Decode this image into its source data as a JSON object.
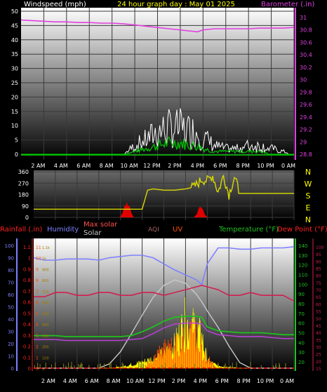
{
  "header": {
    "windspeed_label": "Windspeed (mph)",
    "title": "24 hour graph day : May 01 2025",
    "barometer_label": "Barometer (.in)"
  },
  "x_tick_labels": [
    "2 AM",
    "4 AM",
    "6 AM",
    "8 AM",
    "10 AM",
    "12 PM",
    "2 PM",
    "4 PM",
    "6 PM",
    "8 PM",
    "10 PM",
    "0 AM"
  ],
  "wind_panel": {
    "windspeed_ticks": [
      "0",
      "5",
      "10",
      "15",
      "20",
      "25",
      "30",
      "35",
      "40",
      "45",
      "50"
    ],
    "barometer_ticks": [
      "28.8",
      "29",
      "29.2",
      "29.4",
      "29.6",
      "29.8",
      "30",
      "30.2",
      "30.4",
      "30.6",
      "30.8",
      "31"
    ]
  },
  "dir_panel": {
    "deg_ticks": [
      "0",
      "90",
      "180",
      "270",
      "360"
    ],
    "compass": [
      "N",
      "W",
      "S",
      "E",
      "N"
    ]
  },
  "lower_header": {
    "rainfall": "Rainfall (.in)",
    "humidity": "Humidity",
    "max_solar": "Max solar",
    "solar": "Solar",
    "aqi": "AQI",
    "uv": "UV",
    "temperature": "Temperature (°F)",
    "dewpoint": "Dew Point (°F)"
  },
  "lower_panel": {
    "rain_ticks": [
      "0",
      "0.1",
      "0.2",
      "0.3",
      "0.4",
      "0.5",
      "0.6",
      "0.7",
      "0.8",
      "0.9",
      "1",
      "1.1"
    ],
    "humidity_ticks": [
      "0",
      "10",
      "20",
      "30",
      "40",
      "50",
      "60",
      "70",
      "80",
      "90",
      "100"
    ],
    "temp_ticks": [
      "20",
      "30",
      "40",
      "50",
      "60",
      "70",
      "80",
      "90",
      "100",
      "110",
      "120",
      "130",
      "140"
    ],
    "uv_ticks": [
      "0",
      "1",
      "2",
      "3",
      "4",
      "5",
      "6",
      "7",
      "8",
      "9",
      "10",
      "11"
    ],
    "solar_ticks": [
      "0",
      "100",
      "200",
      "300",
      "400",
      "500",
      "600",
      "700",
      "800",
      "900",
      "1k",
      "1.1k"
    ],
    "dewpoint_ticks": [
      "15",
      "20",
      "25",
      "30",
      "35",
      "40",
      "45",
      "50",
      "55",
      "60",
      "65",
      "70",
      "75",
      "80",
      "85",
      "90",
      "95",
      "100"
    ]
  },
  "colors": {
    "windspeed": "#ffffff",
    "wind_gust": "#00c800",
    "barometer": "#e040e0",
    "direction": "#d8d800",
    "solar": "#ffff00",
    "max_solar": "#c8c8c8",
    "humidity": "#8080ff",
    "temperature": "#20c020",
    "dewpoint": "#d02050",
    "uv": "#ff5000",
    "rain": "#e00000"
  },
  "chart_data": [
    {
      "type": "line",
      "title": "24 hour graph day : May 01 2025",
      "xlabel": "",
      "ylabel": "Windspeed (mph)",
      "ylim": [
        0,
        50
      ],
      "y2label": "Barometer (.in)",
      "y2lim": [
        28.8,
        31
      ],
      "x_hours": [
        0,
        1,
        2,
        3,
        4,
        5,
        6,
        7,
        8,
        9,
        10,
        11,
        12,
        13,
        14,
        15,
        15.5,
        16,
        17,
        18,
        19,
        20,
        21,
        22,
        23,
        24
      ],
      "series": [
        {
          "name": "Barometer (.in)",
          "axis": "y2",
          "values": [
            30.96,
            30.95,
            30.94,
            30.93,
            30.93,
            30.92,
            30.92,
            30.91,
            30.91,
            30.9,
            30.88,
            30.86,
            30.84,
            30.82,
            30.8,
            30.78,
            30.77,
            30.8,
            30.82,
            30.82,
            30.82,
            30.82,
            30.83,
            30.83,
            30.83,
            30.84
          ]
        },
        {
          "name": "Windspeed (mph)",
          "axis": "y",
          "values": [
            0,
            0,
            0,
            0,
            0,
            0,
            0,
            0,
            0,
            0,
            3,
            5,
            8,
            9,
            9,
            8,
            8,
            6,
            3,
            2,
            2,
            3,
            3,
            2,
            1,
            0
          ]
        },
        {
          "name": "Wind gust (mph)",
          "axis": "y",
          "values": [
            0,
            0,
            0,
            0,
            0,
            0,
            0,
            0,
            0,
            0,
            1,
            2,
            3,
            4,
            4,
            3,
            3,
            2,
            1,
            1,
            1,
            1,
            1,
            0,
            0,
            0
          ]
        }
      ]
    },
    {
      "type": "line",
      "ylabel": "Wind direction",
      "ylim": [
        0,
        360
      ],
      "x_hours": [
        0,
        2,
        4,
        6,
        8,
        9,
        10,
        10.5,
        11,
        12,
        13,
        14,
        14.8,
        15.5,
        16,
        16.5,
        17,
        17.5,
        18,
        18.5,
        19,
        20,
        22,
        24
      ],
      "series": [
        {
          "name": "Wind direction",
          "values": [
            65,
            65,
            65,
            65,
            65,
            65,
            65,
            215,
            225,
            215,
            215,
            225,
            240,
            300,
            290,
            330,
            200,
            330,
            180,
            320,
            190,
            190,
            190,
            190
          ]
        }
      ]
    },
    {
      "type": "line",
      "ylabel": "Rainfall (.in)",
      "ylim": [
        0,
        1.1
      ],
      "x_hours": [
        0,
        1,
        2,
        3,
        4,
        5,
        6,
        7,
        8,
        9,
        10,
        11,
        12,
        13,
        14,
        15,
        15.5,
        16,
        17,
        18,
        19,
        20,
        21,
        22,
        23,
        24
      ],
      "series": [
        {
          "name": "Humidity",
          "axis": "humidity",
          "values": [
            90,
            88,
            88,
            89,
            89,
            89,
            88,
            90,
            91,
            92,
            92,
            90,
            85,
            80,
            76,
            72,
            68,
            85,
            98,
            98,
            97,
            97,
            98,
            98,
            98,
            99
          ]
        },
        {
          "name": "Temperature (°F)",
          "axis": "temperature",
          "values": [
            47,
            47,
            47,
            46,
            46,
            46,
            46,
            46,
            46,
            47,
            51,
            56,
            62,
            66,
            67,
            67,
            66,
            56,
            52,
            51,
            50,
            50,
            50,
            49,
            48,
            48
          ]
        },
        {
          "name": "Dew Point (°F)",
          "axis": "dewpoint",
          "values": [
            65,
            65,
            68,
            68,
            66,
            66,
            68,
            68,
            66,
            66,
            68,
            68,
            66,
            68,
            70,
            72,
            73,
            72,
            70,
            66,
            66,
            68,
            66,
            66,
            66,
            62
          ]
        },
        {
          "name": "Max solar",
          "axis": "solar",
          "values": [
            0,
            0,
            0,
            0,
            0,
            0,
            0,
            40,
            150,
            310,
            480,
            640,
            750,
            800,
            770,
            670,
            600,
            520,
            370,
            200,
            50,
            0,
            0,
            0,
            0,
            0
          ]
        },
        {
          "name": "Solar",
          "axis": "solar",
          "values": [
            0,
            0,
            0,
            0,
            0,
            0,
            0,
            0,
            10,
            30,
            50,
            80,
            120,
            200,
            400,
            320,
            260,
            60,
            20,
            10,
            0,
            0,
            0,
            0,
            0,
            0
          ]
        },
        {
          "name": "UV",
          "axis": "uv",
          "values": [
            0,
            0,
            0,
            0,
            0,
            0,
            0,
            0,
            0,
            0,
            0,
            1,
            2,
            2,
            3,
            4,
            2,
            1,
            0,
            0,
            0,
            0,
            0,
            0,
            0,
            0
          ]
        }
      ]
    }
  ]
}
